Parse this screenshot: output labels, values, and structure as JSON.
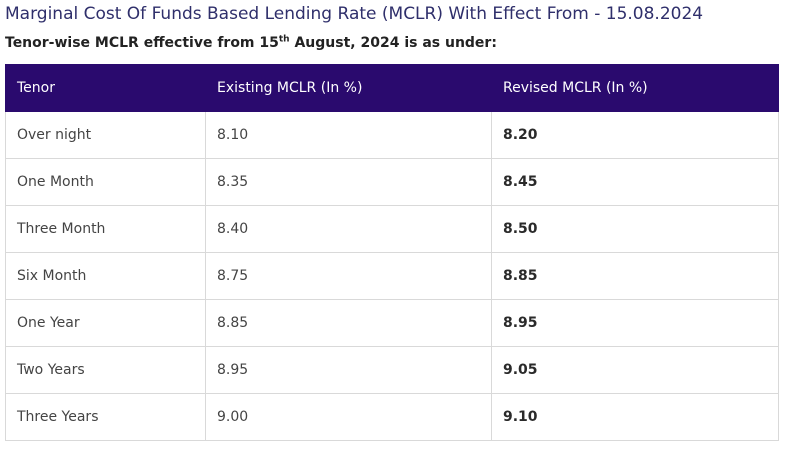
{
  "title": "Marginal Cost Of Funds Based Lending Rate (MCLR) With Effect From - 15.08.2024",
  "subtitle": {
    "prefix": "Tenor-wise MCLR effective from 15",
    "superscript": "th",
    "suffix": " August, 2024 is as under:"
  },
  "table": {
    "headers": {
      "tenor": "Tenor",
      "existing": "Existing MCLR (In %)",
      "revised": "Revised MCLR (In %)"
    },
    "rows": [
      {
        "tenor": "Over night",
        "existing": "8.10",
        "revised": "8.20"
      },
      {
        "tenor": "One Month",
        "existing": "8.35",
        "revised": "8.45"
      },
      {
        "tenor": "Three Month",
        "existing": "8.40",
        "revised": "8.50"
      },
      {
        "tenor": "Six Month",
        "existing": "8.75",
        "revised": "8.85"
      },
      {
        "tenor": "One Year",
        "existing": "8.85",
        "revised": "8.95"
      },
      {
        "tenor": "Two Years",
        "existing": "8.95",
        "revised": "9.05"
      },
      {
        "tenor": "Three Years",
        "existing": "9.00",
        "revised": "9.10"
      }
    ]
  },
  "colors": {
    "header_background": "#2a0a6e",
    "title_text": "#2f2f6b",
    "border": "#d9d9d9"
  }
}
